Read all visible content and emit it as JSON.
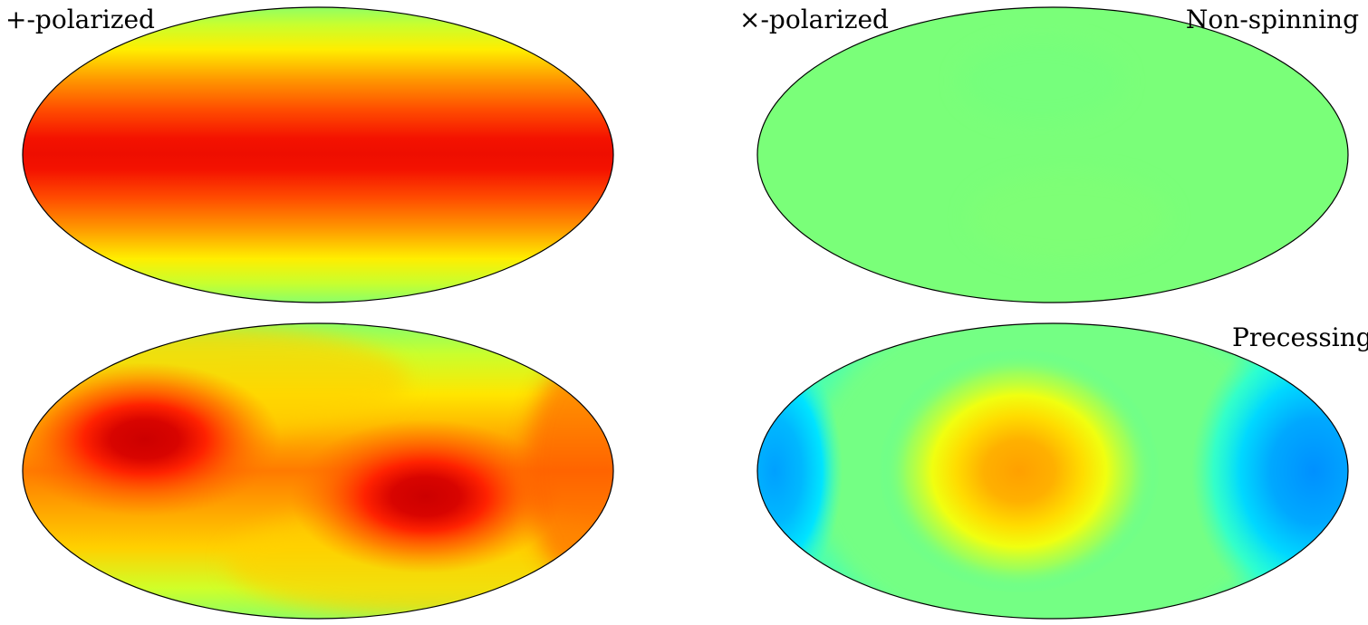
{
  "labels": {
    "plus_polarized": "+-polarized",
    "cross_polarized": "×-polarized",
    "non_spinning": "Non-spinning",
    "precessing": "Precessing"
  },
  "panels": [
    {
      "id": "nonspinning-plus",
      "row": "Non-spinning",
      "column": "+-polarized",
      "projection": "mollweide",
      "pattern": "equatorial band, maximum at equator"
    },
    {
      "id": "nonspinning-cross",
      "row": "Non-spinning",
      "column": "×-polarized",
      "projection": "mollweide",
      "pattern": "uniform"
    },
    {
      "id": "precessing-plus",
      "row": "Precessing",
      "column": "+-polarized",
      "projection": "mollweide",
      "pattern": "two maxima (upper-left and lower-right)"
    },
    {
      "id": "precessing-cross",
      "row": "Precessing",
      "column": "×-polarized",
      "projection": "mollweide",
      "pattern": "central maximum, minima at left and right edges"
    }
  ],
  "colormap": "jet",
  "colors": {
    "outline": "#000000",
    "background": "#ffffff"
  }
}
